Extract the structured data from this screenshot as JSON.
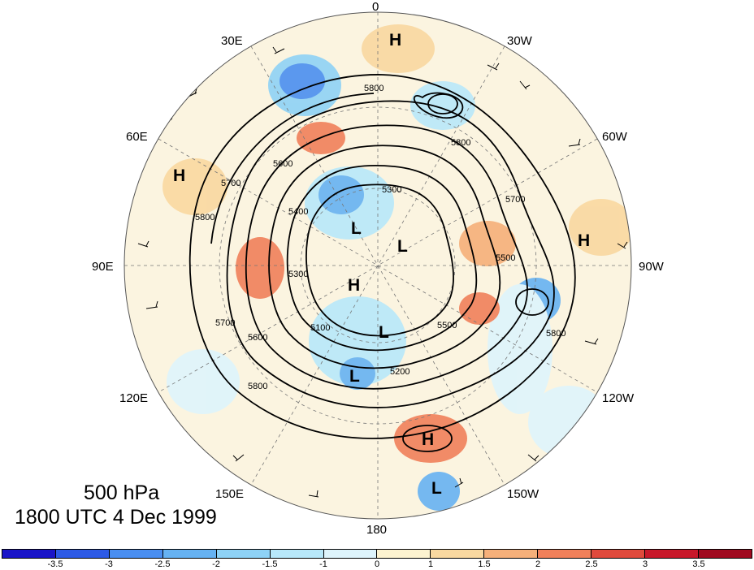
{
  "title": {
    "level": "500 hPa",
    "time": "1800 UTC 4 Dec 1999"
  },
  "longitude_labels": [
    "0",
    "30W",
    "60W",
    "90W",
    "120W",
    "150W",
    "180",
    "150E",
    "120E",
    "90E",
    "60E",
    "30E"
  ],
  "contour_labels": [
    "5800",
    "5800",
    "5800",
    "5700",
    "5700",
    "5700",
    "5600",
    "5500",
    "5400",
    "5300",
    "5300",
    "5200",
    "5100",
    "5600",
    "5800",
    "5800",
    "5500"
  ],
  "pressure_centers": [
    "H",
    "H",
    "H",
    "H",
    "H",
    "L",
    "L",
    "L",
    "L",
    "L"
  ],
  "colorbar": {
    "ticks": [
      "-3.5",
      "-3",
      "-2.5",
      "-2",
      "-1.5",
      "-1",
      "0",
      "1",
      "1.5",
      "2",
      "2.5",
      "3",
      "3.5"
    ],
    "colors": [
      "#1a14c8",
      "#2d5ae6",
      "#4a8ef0",
      "#66b2f2",
      "#8ed2f6",
      "#b8e8fa",
      "#def4fc",
      "#fdf3d0",
      "#f9d8a0",
      "#f6b07a",
      "#f0805a",
      "#e04a3c",
      "#c8182a",
      "#a00a20"
    ]
  }
}
